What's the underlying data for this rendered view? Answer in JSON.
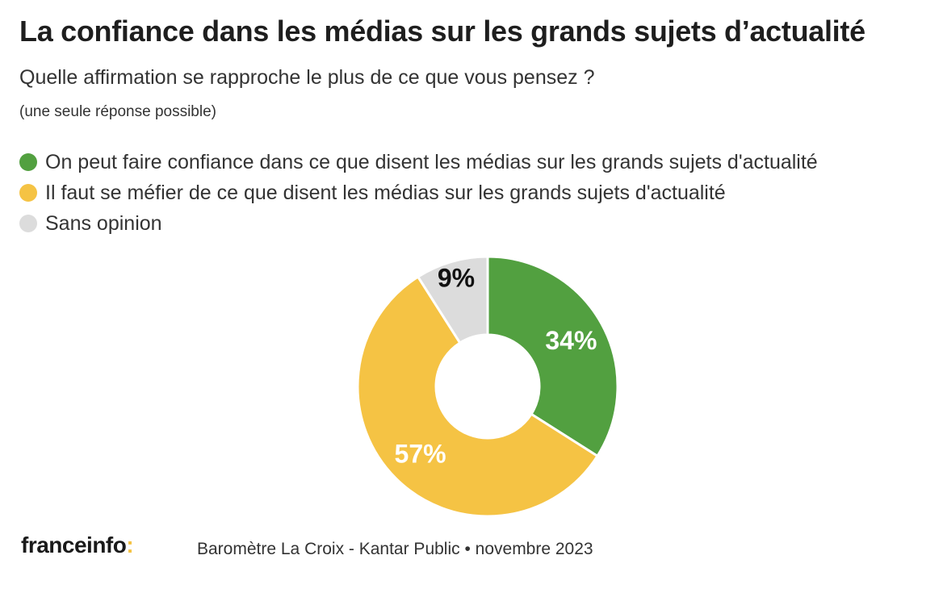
{
  "title": "La confiance dans les médias sur les grands sujets d’actualité",
  "subtitle": "Quelle affirmation se rapproche le plus de ce que vous pensez ?",
  "note": "(une seule réponse possible)",
  "chart_data": {
    "type": "pie",
    "donut": true,
    "title": "La confiance dans les médias sur les grands sujets d’actualité",
    "legend_position": "top-left",
    "categories": [
      "On peut faire confiance dans ce que disent les médias sur les grands sujets d'actualité",
      "Il faut se méfier de ce que disent les médias sur les grands sujets d'actualité",
      "Sans opinion"
    ],
    "values": [
      34,
      57,
      9
    ],
    "labels": [
      "34%",
      "57%",
      "9%"
    ],
    "colors": [
      "#52a040",
      "#f5c344",
      "#dcdcdc"
    ],
    "label_colors": [
      "#ffffff",
      "#ffffff",
      "#111111"
    ]
  },
  "footer": {
    "logo_text": "franceinfo",
    "logo_colon": ":",
    "source": "Baromètre La Croix - Kantar Public • novembre 2023"
  }
}
